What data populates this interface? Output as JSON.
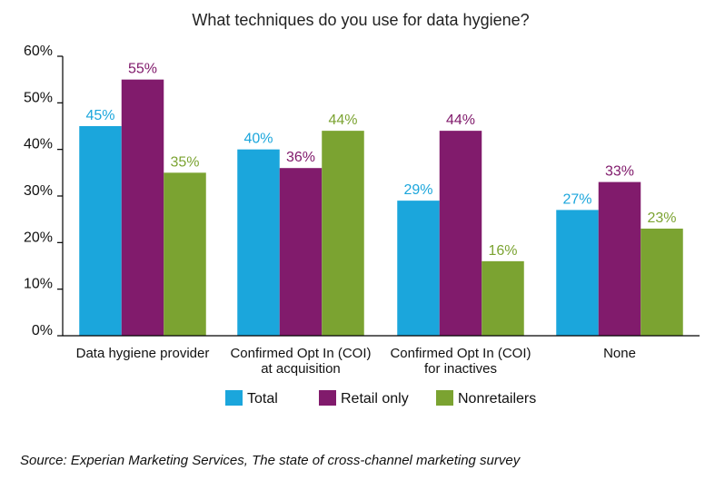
{
  "chart_data": {
    "type": "bar",
    "title": "What techniques do you use for data hygiene?",
    "categories": [
      [
        "Data hygiene provider"
      ],
      [
        "Confirmed Opt In (COI)",
        "at acquisition"
      ],
      [
        "Confirmed Opt In (COI)",
        "for inactives"
      ],
      [
        "None"
      ]
    ],
    "series": [
      {
        "name": "Total",
        "color": "#1BA6DC",
        "values": [
          45,
          40,
          29,
          27
        ]
      },
      {
        "name": "Retail only",
        "color": "#811B6C",
        "values": [
          55,
          36,
          44,
          33
        ]
      },
      {
        "name": "Nonretailers",
        "color": "#7BA331",
        "values": [
          35,
          44,
          16,
          23
        ]
      }
    ],
    "yticks": [
      "0%",
      "10%",
      "20%",
      "30%",
      "40%",
      "50%",
      "60%"
    ],
    "ylim": [
      0,
      60
    ],
    "xlabel": "",
    "ylabel": "",
    "value_suffix": "%",
    "legend_position": "bottom",
    "source": "Source: Experian Marketing Services, The state of cross-channel marketing survey"
  }
}
